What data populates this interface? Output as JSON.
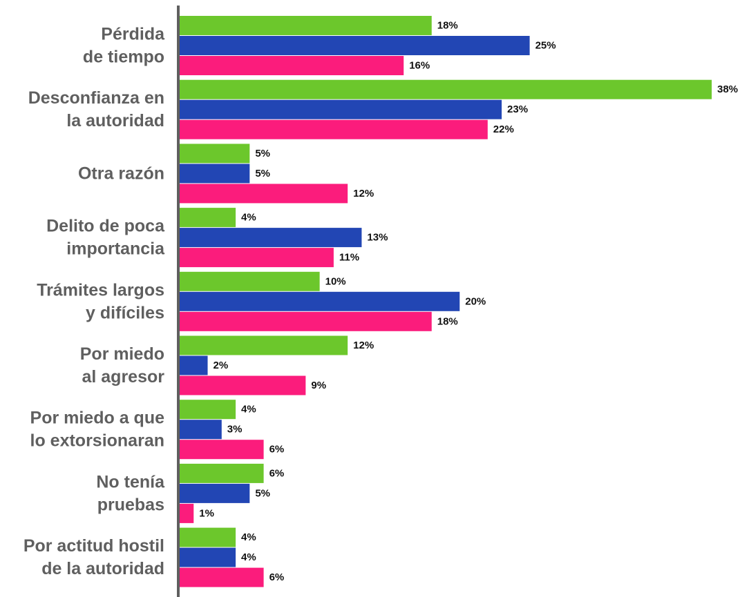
{
  "chart_data": {
    "type": "bar",
    "orientation": "horizontal",
    "categories": [
      [
        "Pérdida",
        "de tiempo"
      ],
      [
        "Desconfianza en",
        "la autoridad"
      ],
      [
        "Otra razón"
      ],
      [
        "Delito de poca",
        "importancia"
      ],
      [
        "Trámites largos",
        "y difíciles"
      ],
      [
        "Por miedo",
        "al agresor"
      ],
      [
        "Por miedo a que",
        "lo extorsionaran"
      ],
      [
        "No tenía",
        "pruebas"
      ],
      [
        "Por actitud hostil",
        "de la autoridad"
      ]
    ],
    "series": [
      {
        "color": "#6cc72c",
        "values": [
          18,
          38,
          5,
          4,
          10,
          12,
          4,
          6,
          4
        ],
        "labels": [
          "18%",
          "38%",
          "5%",
          "4%",
          "10%",
          "12%",
          "4%",
          "6%",
          "4%"
        ]
      },
      {
        "color": "#2246b4",
        "values": [
          25,
          23,
          5,
          13,
          20,
          2,
          3,
          5,
          4
        ],
        "labels": [
          "25%",
          "23%",
          "5%",
          "13%",
          "20%",
          "2%",
          "3%",
          "5%",
          "4%"
        ]
      },
      {
        "color": "#fb1c7c",
        "values": [
          16,
          22,
          12,
          11,
          18,
          9,
          6,
          1,
          6
        ],
        "labels": [
          "16%",
          "22%",
          "12%",
          "11%",
          "18%",
          "9%",
          "6%",
          "1%",
          "6%"
        ]
      }
    ],
    "xlim": [
      0,
      38
    ],
    "axis_color": "#5f5f5f",
    "legend": "none",
    "grid": false
  }
}
